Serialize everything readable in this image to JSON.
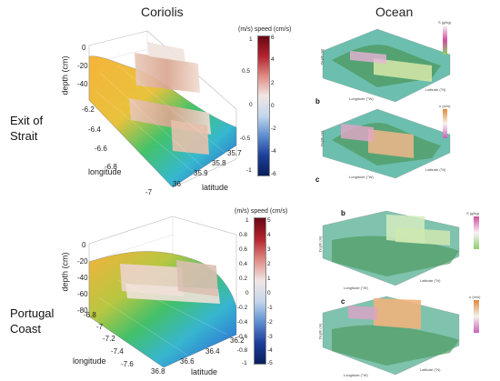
{
  "headers": {
    "left": "Coriolis",
    "right": "Ocean"
  },
  "rows": [
    {
      "label_line1": "Exit of",
      "label_line2": "Strait"
    },
    {
      "label_line1": "Portugal",
      "label_line2": "Coast"
    }
  ],
  "coriolis_top": {
    "z_label": "depth (cm)",
    "x_label": "longitude",
    "y_label": "latitude",
    "z_ticks": [
      "0",
      "-20",
      "-40"
    ],
    "lon_ticks": [
      "-6.2",
      "-6.4",
      "-6.6",
      "-6.8",
      "-7"
    ],
    "lat_ticks": [
      "36",
      "35.9",
      "35.8",
      "35.7"
    ],
    "colorbar_title": "(m/s) speed (cm/s)",
    "cb_left_ticks": [
      "1",
      "0.5",
      "0",
      "-0.5",
      "-1"
    ],
    "cb_right_ticks": [
      "6",
      "4",
      "2",
      "0",
      "-2",
      "-4",
      "-6"
    ]
  },
  "coriolis_bottom": {
    "z_label": "depth (cm)",
    "x_label": "longitude",
    "y_label": "latitude",
    "z_ticks": [
      "0",
      "-20",
      "-40",
      "-60",
      "-80"
    ],
    "lon_ticks": [
      "-6.8",
      "-7",
      "-7.2",
      "-7.4",
      "-7.6"
    ],
    "lat_ticks": [
      "36.8",
      "36.6",
      "36.4",
      "36.2"
    ],
    "colorbar_title": "(m/s) speed (cm/s)",
    "cb_left_ticks": [
      "1",
      "0.8",
      "0.6",
      "0.4",
      "0.2",
      "0",
      "-0.2",
      "-0.4",
      "-0.6",
      "-0.8",
      "-1"
    ],
    "cb_right_ticks": [
      "5",
      "4",
      "3",
      "2",
      "1",
      "0",
      "-1",
      "-2",
      "-3",
      "-4",
      "-5"
    ]
  },
  "ocean_panels": [
    {
      "letter": "",
      "cb_title": "S (g/kg)",
      "x_label": "Longitude (°W)",
      "y_label": "Latitude (°N)",
      "z_label": "Depth (m)"
    },
    {
      "letter": "b",
      "cb_title": "u (m/s)",
      "x_label": "Longitude (°W)",
      "y_label": "Latitude (°N)",
      "z_label": "Depth (m)"
    },
    {
      "letter": "b",
      "cb_title": "S (g/kg)",
      "x_label": "Longitude (°W)",
      "y_label": "Latitude (°N)",
      "z_label": "Depth (m)"
    },
    {
      "letter": "c",
      "cb_title": "u (m/s)",
      "x_label": "Longitude (°W)",
      "y_label": "Latitude (°N)",
      "z_label": "Depth (m)"
    }
  ],
  "ocean_letter_c_top": "c",
  "colors": {
    "surface_yellow": "#f2b23a",
    "surface_green": "#3cc06a",
    "surface_cyan": "#3bb3d0",
    "surface_blue": "#2a55c8",
    "cb_red": "#8b0a1e",
    "cb_blue": "#0a2a7a",
    "ocean_teal": "#6cbfae",
    "ocean_green": "#4f9b63",
    "salinity_pink": "#d04fa0",
    "velocity_orange": "#e08a3a"
  }
}
